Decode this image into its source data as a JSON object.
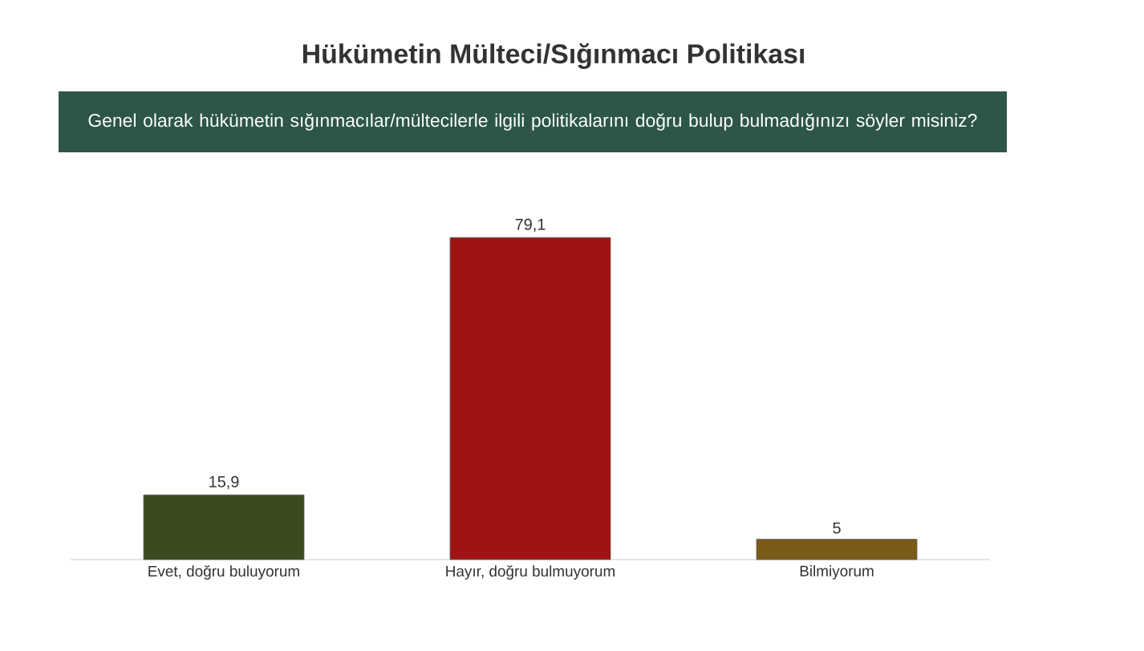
{
  "chart_data": {
    "type": "bar",
    "title": "Hükümetin Mülteci/Sığınmacı Politikası",
    "subtitle": "Genel olarak hükümetin sığınmacılar/mültecilerle ilgili politikalarını doğru bulup bulmadığınızı söyler misiniz?",
    "categories": [
      "Evet, doğru buluyorum",
      "Hayır, doğru bulmuyorum",
      "Bilmiyorum"
    ],
    "values": [
      15.9,
      79.1,
      5
    ],
    "value_labels": [
      "15,9",
      "79,1",
      "5"
    ],
    "colors": [
      "#3b4a1f",
      "#a01313",
      "#7a5a16"
    ]
  }
}
